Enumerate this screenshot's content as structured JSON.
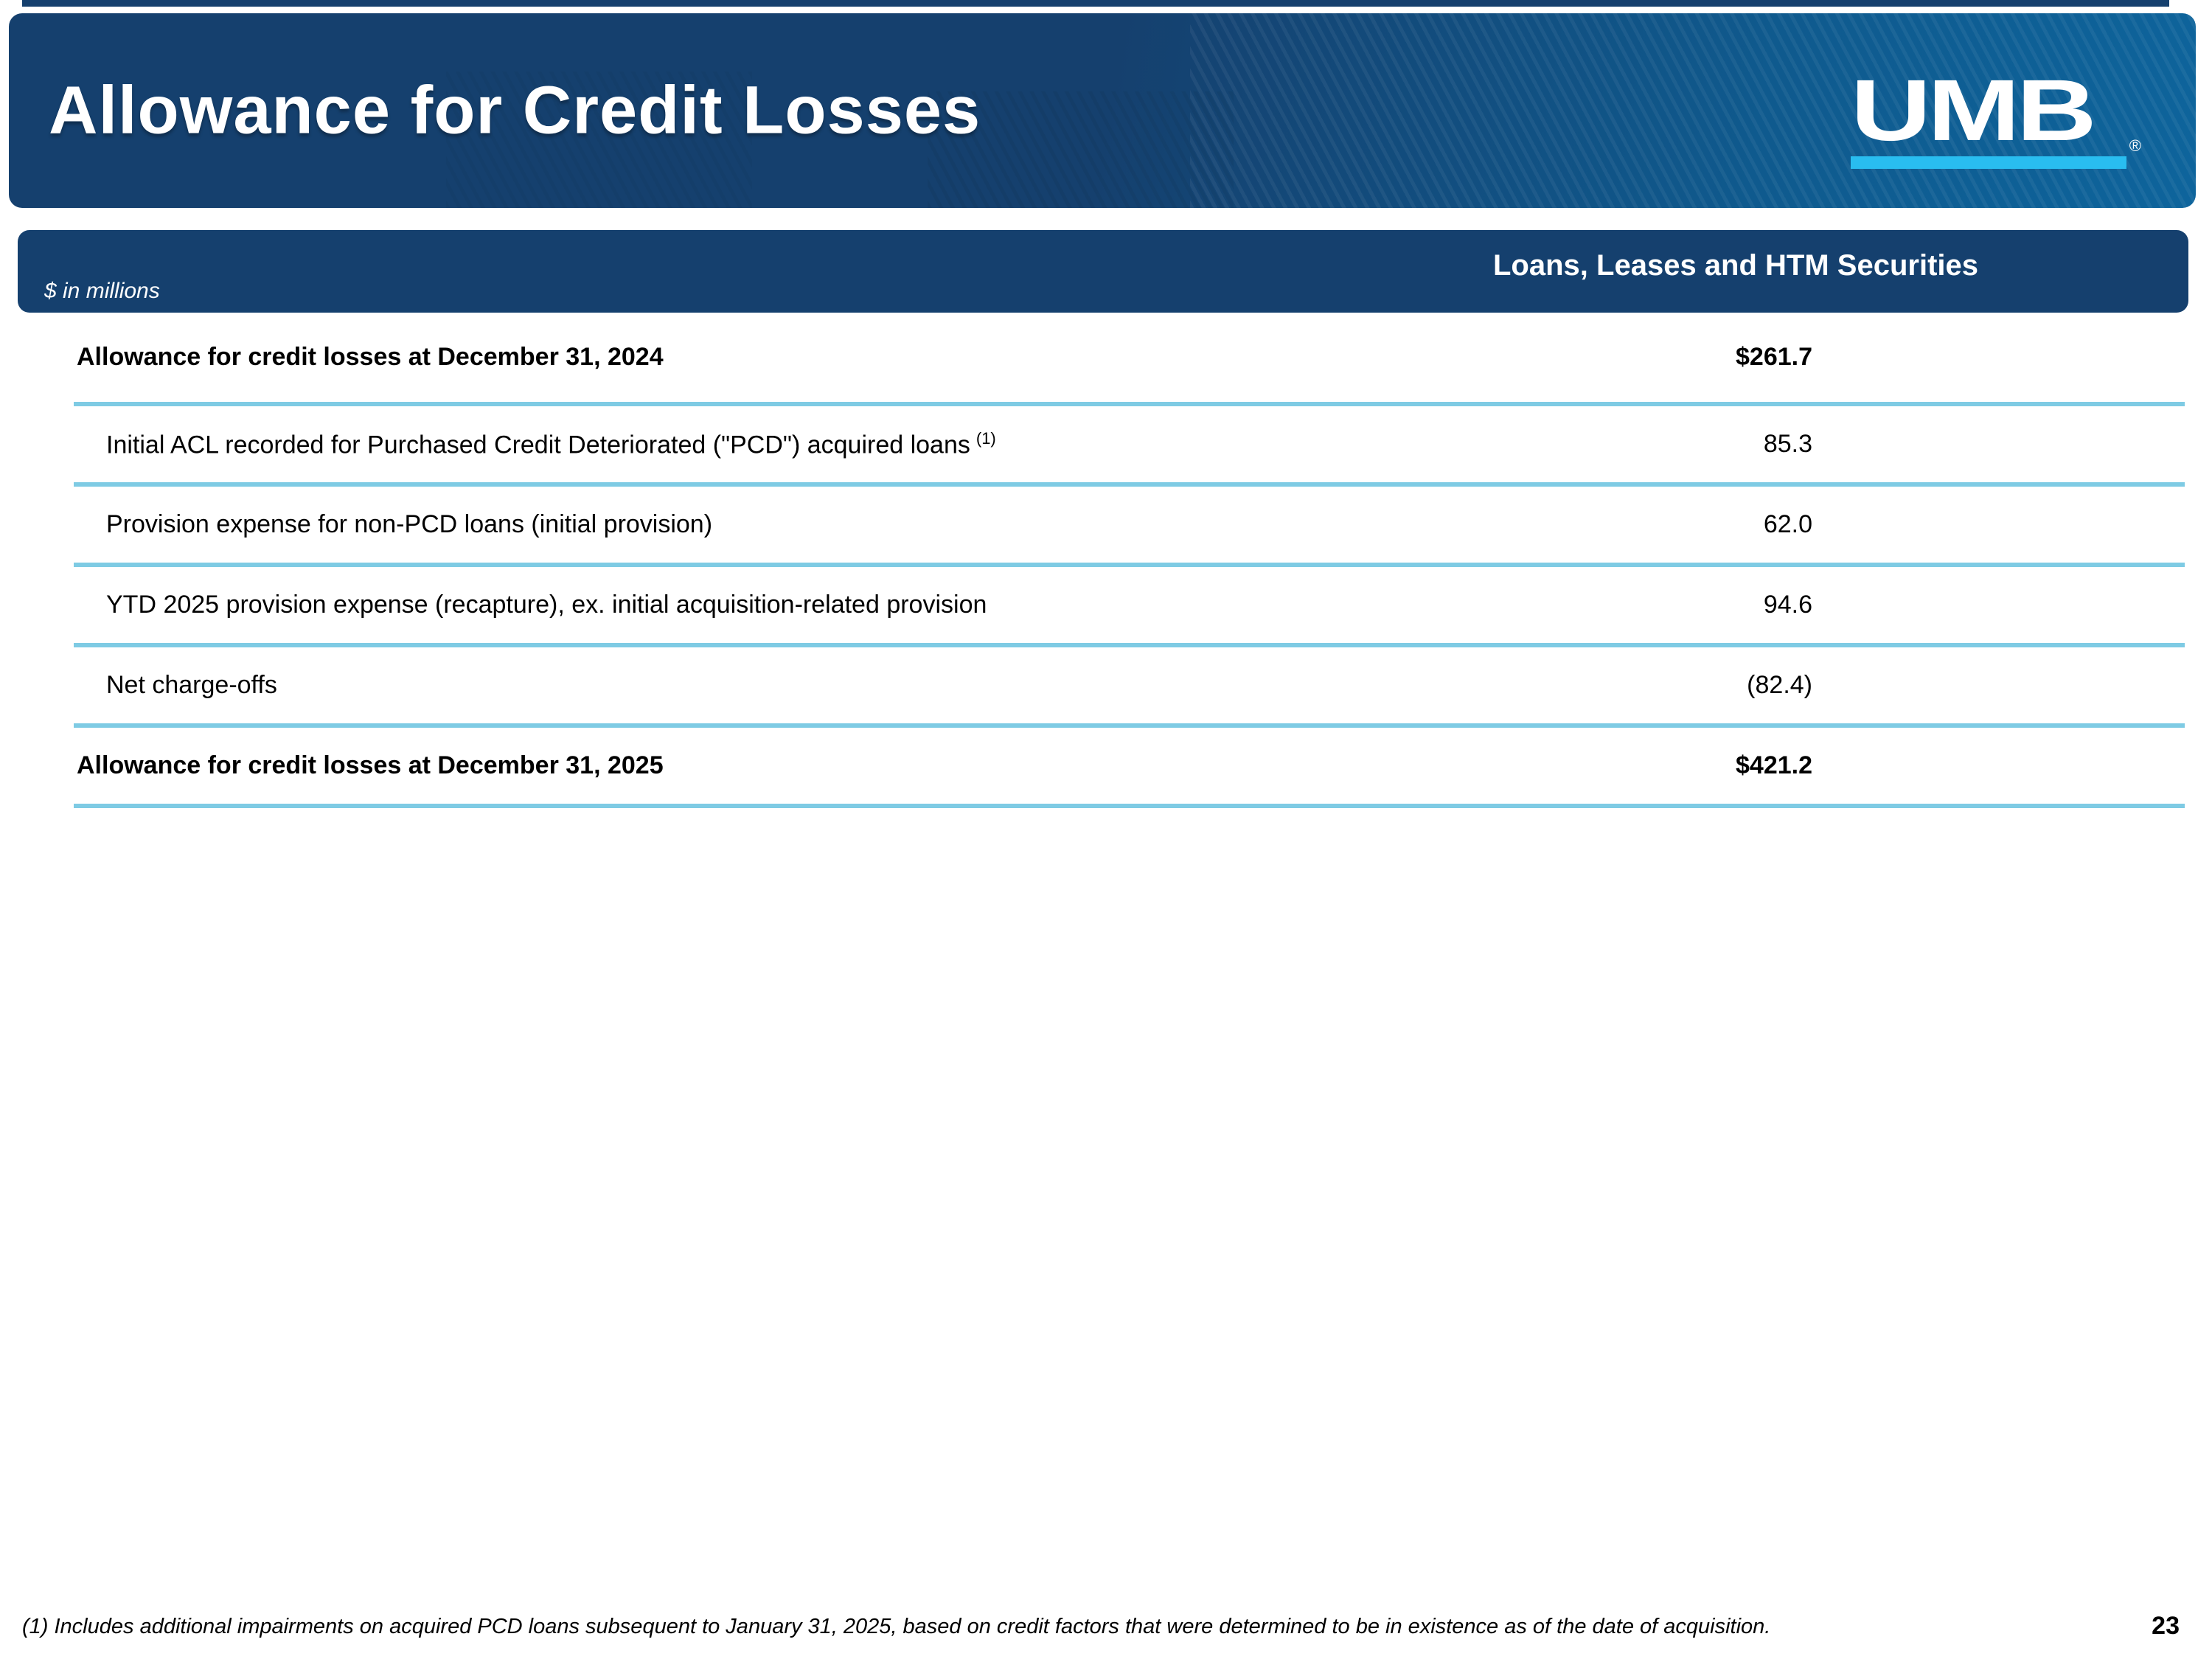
{
  "slide": {
    "title": "Allowance for Credit Losses",
    "page_number": "23",
    "footnote": "(1) Includes additional impairments on acquired PCD loans subsequent to January 31, 2025, based on credit factors that were determined to be in existence as of the date of acquisition."
  },
  "logo": {
    "text": "UMB",
    "registered_mark": "®"
  },
  "table": {
    "units_label": "$ in millions",
    "column_header": "Loans, Leases and HTM Securities",
    "rows": [
      {
        "label": "Allowance for credit losses at December 31, 2024",
        "superscript": "",
        "value": "$261.7",
        "bold": true,
        "indent": false
      },
      {
        "label": "Initial ACL recorded for Purchased Credit Deteriorated (\"PCD\") acquired loans",
        "superscript": "(1)",
        "value": "85.3",
        "bold": false,
        "indent": true
      },
      {
        "label": "Provision expense for non-PCD loans (initial provision)",
        "superscript": "",
        "value": "62.0",
        "bold": false,
        "indent": true
      },
      {
        "label": "YTD 2025 provision expense (recapture), ex. initial acquisition-related provision",
        "superscript": "",
        "value": "94.6",
        "bold": false,
        "indent": true
      },
      {
        "label": "Net charge-offs",
        "superscript": "",
        "value": "(82.4)",
        "bold": false,
        "indent": true
      },
      {
        "label": "Allowance for credit losses at December 31, 2025",
        "superscript": "",
        "value": "$421.2",
        "bold": true,
        "indent": false
      }
    ]
  },
  "colors": {
    "navy": "#15406e",
    "header_right_blue": "#0e649c",
    "divider_light_blue": "#7ecbe4",
    "logo_cyan": "#29bdf0"
  }
}
